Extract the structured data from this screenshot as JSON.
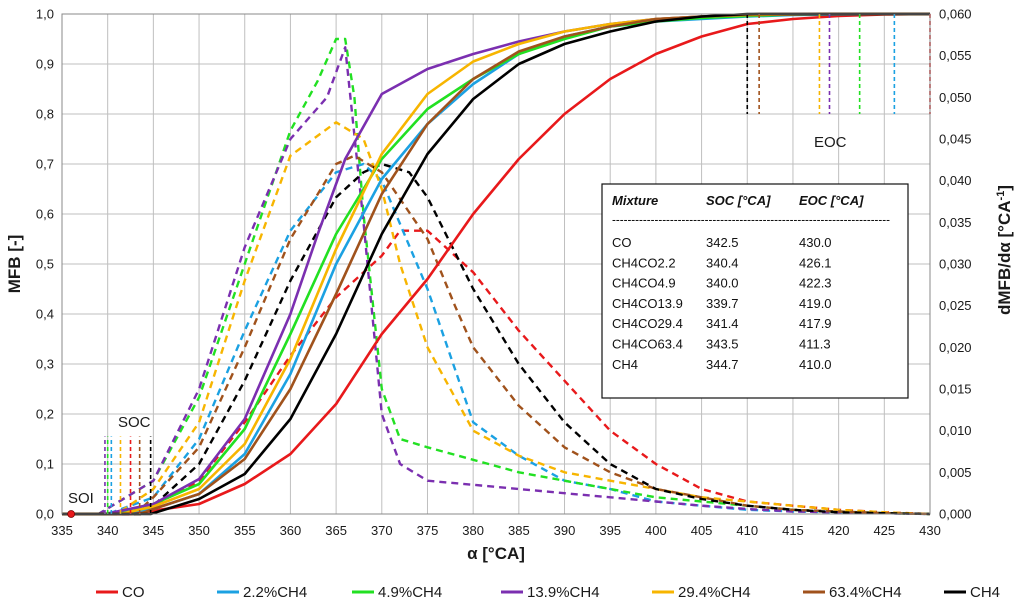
{
  "chart_data": {
    "type": "line",
    "title": "",
    "xlabel": "α [°CA]",
    "ylabel": "MFB [-]",
    "y2label": "dMFB/dα [°CA",
    "y2label_sup": "-1",
    "y2label_close": "]",
    "xlim": [
      335,
      430
    ],
    "ylim": [
      0,
      1
    ],
    "y2lim": [
      0,
      0.06
    ],
    "x_ticks": [
      "335",
      "340",
      "345",
      "350",
      "355",
      "360",
      "365",
      "370",
      "375",
      "380",
      "385",
      "390",
      "395",
      "400",
      "405",
      "410",
      "415",
      "420",
      "425",
      "430"
    ],
    "y_ticks": [
      "0,0",
      "0,1",
      "0,2",
      "0,3",
      "0,4",
      "0,5",
      "0,6",
      "0,7",
      "0,8",
      "0,9",
      "1,0"
    ],
    "y2_ticks": [
      "0,000",
      "0,005",
      "0,010",
      "0,015",
      "0,020",
      "0,025",
      "0,030",
      "0,035",
      "0,040",
      "0,045",
      "0,050",
      "0,055",
      "0,060"
    ],
    "grid": true,
    "annotations": {
      "soi": "SOI",
      "soc": "SOC",
      "eoc": "EOC",
      "soi_x": 336
    },
    "series": [
      {
        "name": "CO",
        "legend": "CO",
        "color": "#e8191b",
        "soc": 342.5,
        "eoc": 430.0,
        "mfb_x": [
          342.5,
          350,
          355,
          360,
          365,
          370,
          375,
          380,
          385,
          390,
          395,
          400,
          405,
          410,
          415,
          420,
          425,
          430
        ],
        "mfb_y": [
          0,
          0.02,
          0.06,
          0.12,
          0.22,
          0.36,
          0.47,
          0.6,
          0.71,
          0.8,
          0.87,
          0.92,
          0.955,
          0.98,
          0.99,
          0.996,
          0.999,
          1.0
        ],
        "rate_x": [
          335,
          340,
          345,
          350,
          355,
          360,
          365,
          370,
          372,
          375,
          378,
          380,
          385,
          390,
          395,
          400,
          405,
          410,
          415,
          420,
          425,
          430
        ],
        "rate_y": [
          0,
          0,
          0.001,
          0.004,
          0.011,
          0.019,
          0.026,
          0.031,
          0.034,
          0.034,
          0.031,
          0.029,
          0.022,
          0.016,
          0.01,
          0.006,
          0.003,
          0.0015,
          0.001,
          0.0005,
          0.0002,
          0
        ]
      },
      {
        "name": "2.2%CH4",
        "legend": "2.2%CH4",
        "color": "#1ba1e2",
        "soc": 340.4,
        "eoc": 426.1,
        "mfb_x": [
          340.4,
          345,
          350,
          355,
          360,
          365,
          370,
          375,
          380,
          385,
          390,
          395,
          400,
          405,
          410,
          415,
          420,
          426.1,
          430
        ],
        "mfb_y": [
          0,
          0.01,
          0.04,
          0.12,
          0.28,
          0.5,
          0.67,
          0.78,
          0.86,
          0.92,
          0.955,
          0.975,
          0.985,
          0.99,
          0.995,
          0.998,
          0.999,
          1.0,
          1.0
        ],
        "rate_x": [
          335,
          340,
          345,
          350,
          355,
          360,
          365,
          368,
          370,
          375,
          380,
          385,
          390,
          395,
          400,
          405,
          410,
          415,
          420,
          425,
          430
        ],
        "rate_y": [
          0,
          0,
          0.002,
          0.009,
          0.022,
          0.034,
          0.041,
          0.042,
          0.04,
          0.027,
          0.011,
          0.007,
          0.004,
          0.003,
          0.0015,
          0.001,
          0.0005,
          0.0003,
          0.0002,
          0.0001,
          0
        ]
      },
      {
        "name": "4.9%CH4",
        "legend": "4.9%CH4",
        "color": "#22e022",
        "soc": 340.0,
        "eoc": 422.3,
        "mfb_x": [
          340,
          345,
          350,
          355,
          360,
          365,
          368,
          370,
          375,
          380,
          385,
          390,
          395,
          400,
          405,
          410,
          415,
          422.3,
          430
        ],
        "mfb_y": [
          0,
          0.02,
          0.06,
          0.17,
          0.36,
          0.56,
          0.65,
          0.71,
          0.81,
          0.87,
          0.92,
          0.95,
          0.975,
          0.985,
          0.992,
          0.996,
          0.999,
          1.0,
          1.0
        ],
        "rate_x": [
          335,
          339,
          345,
          350,
          355,
          360,
          363,
          365,
          366,
          367,
          368,
          370,
          372,
          375,
          380,
          385,
          390,
          395,
          400,
          405,
          410,
          415,
          420,
          425,
          430
        ],
        "rate_y": [
          0,
          0,
          0.004,
          0.014,
          0.03,
          0.046,
          0.052,
          0.057,
          0.057,
          0.05,
          0.036,
          0.015,
          0.009,
          0.008,
          0.0065,
          0.005,
          0.004,
          0.003,
          0.002,
          0.0015,
          0.001,
          0.0005,
          0.0003,
          0.0001,
          0
        ]
      },
      {
        "name": "13.9%CH4",
        "legend": "13.9%CH4",
        "color": "#7b2fb0",
        "soc": 339.7,
        "eoc": 419.0,
        "mfb_x": [
          339.7,
          345,
          350,
          355,
          360,
          363,
          366,
          370,
          375,
          380,
          385,
          390,
          395,
          400,
          405,
          410,
          419,
          430
        ],
        "mfb_y": [
          0,
          0.02,
          0.07,
          0.19,
          0.4,
          0.56,
          0.71,
          0.84,
          0.89,
          0.92,
          0.945,
          0.965,
          0.98,
          0.99,
          0.995,
          0.998,
          1.0,
          1.0
        ],
        "rate_x": [
          335,
          339,
          345,
          350,
          355,
          360,
          364,
          366,
          368,
          370,
          372,
          375,
          380,
          385,
          390,
          395,
          400,
          405,
          410,
          415,
          420,
          425,
          430
        ],
        "rate_y": [
          0,
          0,
          0.004,
          0.015,
          0.032,
          0.045,
          0.05,
          0.056,
          0.035,
          0.012,
          0.006,
          0.004,
          0.0035,
          0.003,
          0.0025,
          0.002,
          0.0015,
          0.001,
          0.0006,
          0.0003,
          0.0002,
          0.0001,
          0
        ]
      },
      {
        "name": "29.4%CH4",
        "legend": "29.4%CH4",
        "color": "#f7b500",
        "soc": 341.4,
        "eoc": 417.9,
        "mfb_x": [
          341.4,
          345,
          350,
          355,
          360,
          365,
          370,
          375,
          380,
          385,
          390,
          395,
          400,
          405,
          410,
          417.9,
          430
        ],
        "mfb_y": [
          0,
          0.015,
          0.05,
          0.14,
          0.31,
          0.53,
          0.72,
          0.84,
          0.905,
          0.94,
          0.965,
          0.98,
          0.99,
          0.995,
          0.998,
          1.0,
          1.0
        ],
        "rate_x": [
          335,
          341,
          345,
          350,
          355,
          360,
          365,
          368,
          370,
          372,
          375,
          380,
          385,
          390,
          395,
          400,
          405,
          410,
          415,
          420,
          425,
          430
        ],
        "rate_y": [
          0,
          0,
          0.003,
          0.011,
          0.028,
          0.043,
          0.047,
          0.045,
          0.039,
          0.03,
          0.02,
          0.01,
          0.007,
          0.005,
          0.004,
          0.003,
          0.002,
          0.0015,
          0.001,
          0.0005,
          0.0002,
          0
        ]
      },
      {
        "name": "63.4%CH4",
        "legend": "63.4%CH4",
        "color": "#a0521c",
        "soc": 343.5,
        "eoc": 411.3,
        "mfb_x": [
          343.5,
          345,
          350,
          355,
          360,
          365,
          370,
          375,
          380,
          385,
          390,
          395,
          400,
          405,
          411.3,
          430
        ],
        "mfb_y": [
          0,
          0.01,
          0.04,
          0.11,
          0.25,
          0.44,
          0.64,
          0.78,
          0.87,
          0.925,
          0.955,
          0.975,
          0.99,
          0.995,
          1.0,
          1.0
        ],
        "rate_x": [
          335,
          343,
          345,
          350,
          355,
          360,
          365,
          367,
          370,
          375,
          378,
          380,
          385,
          390,
          395,
          400,
          405,
          410,
          415,
          420,
          425,
          430
        ],
        "rate_y": [
          0,
          0,
          0.002,
          0.008,
          0.02,
          0.033,
          0.042,
          0.043,
          0.041,
          0.033,
          0.025,
          0.02,
          0.013,
          0.008,
          0.005,
          0.003,
          0.002,
          0.001,
          0.0005,
          0.0003,
          0.0001,
          0
        ]
      },
      {
        "name": "CH4",
        "legend": "CH4",
        "color": "#000000",
        "soc": 344.7,
        "eoc": 410.0,
        "mfb_x": [
          344.7,
          350,
          355,
          360,
          365,
          370,
          375,
          380,
          385,
          390,
          395,
          400,
          405,
          410,
          430
        ],
        "mfb_y": [
          0,
          0.03,
          0.08,
          0.19,
          0.36,
          0.56,
          0.72,
          0.83,
          0.9,
          0.94,
          0.965,
          0.985,
          0.995,
          1.0,
          1.0
        ],
        "rate_x": [
          335,
          344,
          346,
          350,
          355,
          360,
          365,
          368,
          370,
          373,
          375,
          380,
          385,
          390,
          395,
          400,
          405,
          410,
          415,
          420,
          425,
          430
        ],
        "rate_y": [
          0,
          0,
          0.002,
          0.006,
          0.016,
          0.028,
          0.038,
          0.041,
          0.042,
          0.041,
          0.038,
          0.027,
          0.018,
          0.011,
          0.006,
          0.003,
          0.0018,
          0.001,
          0.0005,
          0.0002,
          0.0001,
          0
        ]
      }
    ],
    "table": {
      "headers": [
        "Mixture",
        "SOC [°CA]",
        "EOC [°CA]"
      ],
      "divider": "------------------------------------------------------------------------",
      "rows": [
        [
          "CO",
          "342.5",
          "430.0"
        ],
        [
          "CH4CO2.2",
          "340.4",
          "426.1"
        ],
        [
          "CH4CO4.9",
          "340.0",
          "422.3"
        ],
        [
          "CH4CO13.9",
          "339.7",
          "419.0"
        ],
        [
          "CH4CO29.4",
          "341.4",
          "417.9"
        ],
        [
          "CH4CO63.4",
          "343.5",
          "411.3"
        ],
        [
          "CH4",
          "344.7",
          "410.0"
        ]
      ]
    }
  }
}
